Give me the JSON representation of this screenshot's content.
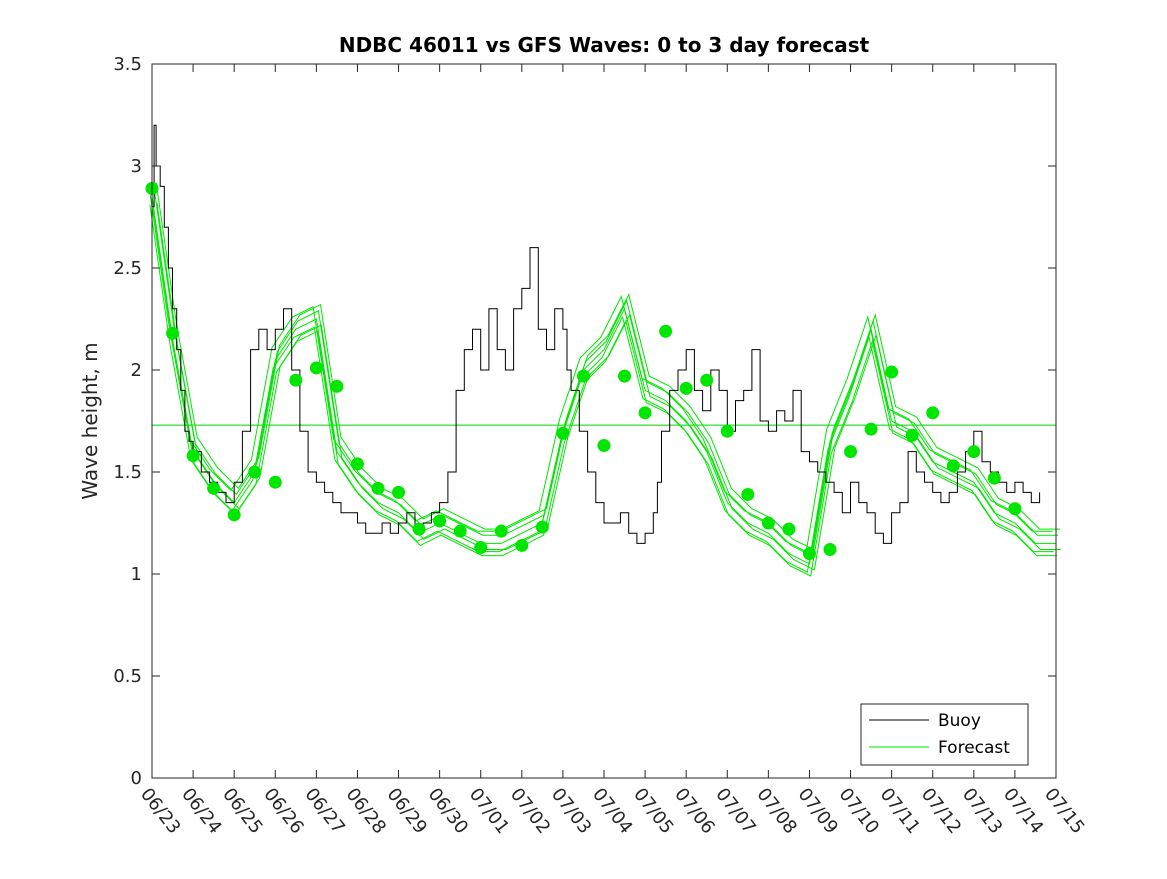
{
  "chart_data": {
    "type": "line",
    "title": "NDBC 46011 vs GFS Waves: 0 to 3 day forecast",
    "xlabel": "",
    "ylabel": "Wave height, m",
    "xlim": [
      "06/23",
      "07/15"
    ],
    "ylim": [
      0,
      3.5
    ],
    "x_ticks": [
      "06/23",
      "06/24",
      "06/25",
      "06/26",
      "06/27",
      "06/28",
      "06/29",
      "06/30",
      "07/01",
      "07/02",
      "07/03",
      "07/04",
      "07/05",
      "07/06",
      "07/07",
      "07/08",
      "07/09",
      "07/10",
      "07/11",
      "07/12",
      "07/13",
      "07/14",
      "07/15"
    ],
    "y_ticks": [
      "0",
      "0.5",
      "1",
      "1.5",
      "2",
      "2.5",
      "3",
      "3.5"
    ],
    "grid": false,
    "legend_position": "bottom-right",
    "legend": [
      "Buoy",
      "Forecast"
    ],
    "colors": {
      "buoy": "#000000",
      "forecast": "#00e600",
      "reference": "#00d000"
    },
    "reference_line": {
      "y": 1.73
    },
    "series": [
      {
        "name": "Buoy",
        "x_day": [
          0,
          0.05,
          0.1,
          0.2,
          0.3,
          0.4,
          0.5,
          0.6,
          0.7,
          0.8,
          0.9,
          1.0,
          1.2,
          1.4,
          1.6,
          1.8,
          2.0,
          2.2,
          2.4,
          2.6,
          2.8,
          3.0,
          3.2,
          3.4,
          3.6,
          3.8,
          4.0,
          4.2,
          4.4,
          4.6,
          4.8,
          5.0,
          5.2,
          5.4,
          5.6,
          5.8,
          6.0,
          6.2,
          6.4,
          6.6,
          6.8,
          7.0,
          7.2,
          7.4,
          7.6,
          7.8,
          8.0,
          8.2,
          8.4,
          8.6,
          8.8,
          9.0,
          9.2,
          9.4,
          9.6,
          9.8,
          10.0,
          10.1,
          10.2,
          10.4,
          10.6,
          10.8,
          11.0,
          11.2,
          11.4,
          11.6,
          11.8,
          12.0,
          12.2,
          12.3,
          12.4,
          12.6,
          12.8,
          13.0,
          13.2,
          13.4,
          13.6,
          13.8,
          14.0,
          14.2,
          14.4,
          14.6,
          14.8,
          15.0,
          15.2,
          15.4,
          15.6,
          15.8,
          16.0,
          16.2,
          16.4,
          16.6,
          16.8,
          17.0,
          17.2,
          17.4,
          17.6,
          17.8,
          18.0,
          18.2,
          18.4,
          18.6,
          18.8,
          19.0,
          19.2,
          19.4,
          19.6,
          19.8,
          20.0,
          20.2,
          20.4,
          20.6,
          20.8,
          21.0,
          21.2,
          21.4,
          21.6
        ],
        "values": [
          2.8,
          3.2,
          3.0,
          2.9,
          2.7,
          2.5,
          2.3,
          2.1,
          1.9,
          1.7,
          1.65,
          1.6,
          1.5,
          1.45,
          1.4,
          1.35,
          1.45,
          1.7,
          2.1,
          2.2,
          2.1,
          2.2,
          2.3,
          2.0,
          1.7,
          1.5,
          1.45,
          1.4,
          1.35,
          1.3,
          1.3,
          1.25,
          1.2,
          1.2,
          1.25,
          1.2,
          1.25,
          1.3,
          1.2,
          1.25,
          1.3,
          1.35,
          1.5,
          1.9,
          2.1,
          2.2,
          2.0,
          2.3,
          2.1,
          2.0,
          2.3,
          2.4,
          2.6,
          2.2,
          2.1,
          2.3,
          2.2,
          2.0,
          1.9,
          1.7,
          1.5,
          1.35,
          1.25,
          1.25,
          1.3,
          1.2,
          1.15,
          1.2,
          1.3,
          1.45,
          1.7,
          1.9,
          2.0,
          2.1,
          1.9,
          1.8,
          2.0,
          1.9,
          1.7,
          1.85,
          1.9,
          2.1,
          1.75,
          1.7,
          1.8,
          1.75,
          1.9,
          1.6,
          1.55,
          1.5,
          1.45,
          1.4,
          1.3,
          1.45,
          1.35,
          1.3,
          1.2,
          1.15,
          1.3,
          1.35,
          1.6,
          1.5,
          1.45,
          1.4,
          1.35,
          1.4,
          1.5,
          1.6,
          1.7,
          1.55,
          1.5,
          1.45,
          1.4,
          1.45,
          1.4,
          1.35,
          1.4
        ]
      },
      {
        "name": "Forecast",
        "x_day": [
          0,
          0.5,
          1,
          1.5,
          2,
          2.5,
          3,
          3.5,
          4,
          4.5,
          5,
          5.5,
          6,
          6.5,
          7,
          7.5,
          8,
          8.5,
          9,
          9.5,
          10,
          10.5,
          11,
          11.5,
          12,
          12.5,
          13,
          13.5,
          14,
          14.5,
          15,
          15.5,
          16,
          16.5,
          17,
          17.5,
          18,
          18.5,
          19,
          19.5,
          20,
          20.5,
          21,
          21.5,
          22
        ],
        "values": [
          2.85,
          2.15,
          1.6,
          1.45,
          1.35,
          1.5,
          2.05,
          2.2,
          2.25,
          1.6,
          1.45,
          1.35,
          1.3,
          1.2,
          1.25,
          1.2,
          1.15,
          1.15,
          1.2,
          1.25,
          1.7,
          2.0,
          2.1,
          2.3,
          1.9,
          1.85,
          1.75,
          1.6,
          1.35,
          1.25,
          1.2,
          1.1,
          1.05,
          1.65,
          1.9,
          2.2,
          1.75,
          1.7,
          1.55,
          1.5,
          1.45,
          1.3,
          1.25,
          1.15,
          1.15
        ]
      }
    ],
    "forecast_markers": {
      "name": "Forecast points",
      "x_day": [
        0,
        0.5,
        1.0,
        1.5,
        2.0,
        2.5,
        3.0,
        3.5,
        4.0,
        4.5,
        5.0,
        5.5,
        6.0,
        6.5,
        7.0,
        7.5,
        8.0,
        8.5,
        9.0,
        9.5,
        10.0,
        10.5,
        11.0,
        11.5,
        12.0,
        12.5,
        13.0,
        13.5,
        14.0,
        14.5,
        15.0,
        15.5,
        16.0,
        16.5,
        17.0,
        17.5,
        18.0,
        18.5,
        19.0,
        19.5,
        20.0,
        20.5,
        21.0
      ],
      "values": [
        2.89,
        2.18,
        1.58,
        1.42,
        1.29,
        1.5,
        1.45,
        1.95,
        2.01,
        1.92,
        1.54,
        1.42,
        1.4,
        1.22,
        1.26,
        1.21,
        1.13,
        1.21,
        1.14,
        1.23,
        1.69,
        1.97,
        1.63,
        1.97,
        1.79,
        2.19,
        1.91,
        1.95,
        1.7,
        1.39,
        1.25,
        1.22,
        1.1,
        1.12,
        1.6,
        1.71,
        1.99,
        1.68,
        1.79,
        1.53,
        1.6,
        1.47,
        1.32
      ]
    }
  }
}
